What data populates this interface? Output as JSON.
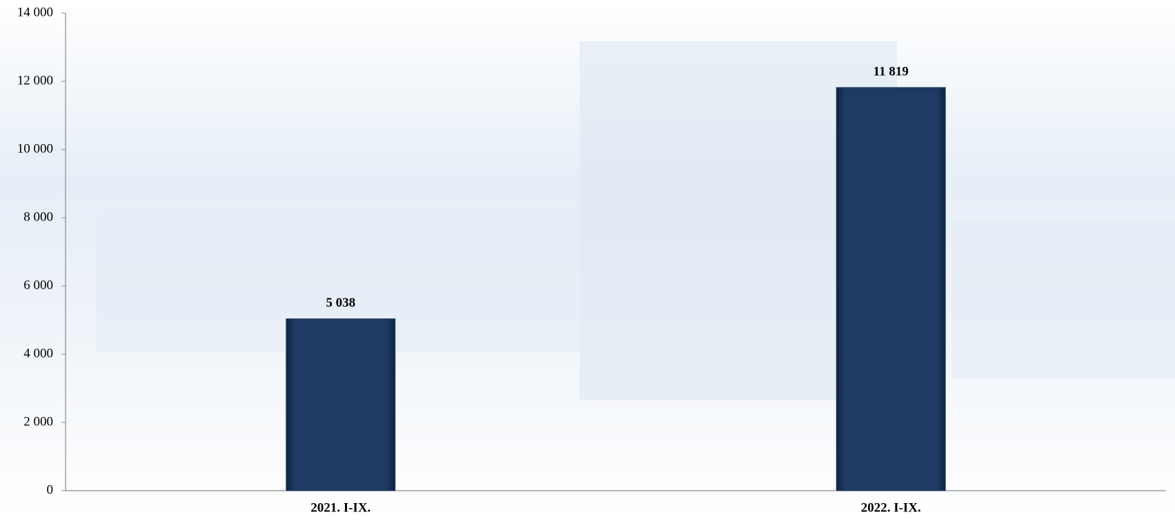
{
  "chart_data": {
    "type": "bar",
    "categories": [
      "2021. I-IX.",
      "2022. I-IX."
    ],
    "values": [
      5038,
      11819
    ],
    "value_labels": [
      "5 038",
      "11 819"
    ],
    "color": "#1f3b63",
    "ylim": [
      0,
      14000
    ],
    "yticks": [
      0,
      {
        "value": 2000,
        "label": "2 000"
      },
      {
        "value": 4000,
        "label": "4 000"
      },
      {
        "value": 6000,
        "label": "6 000"
      },
      {
        "value": 8000,
        "label": "8 000"
      },
      {
        "value": 10000,
        "label": "10 000"
      },
      {
        "value": 12000,
        "label": "12 000"
      },
      {
        "value": 14000,
        "label": "14 000"
      }
    ],
    "grid": false
  }
}
